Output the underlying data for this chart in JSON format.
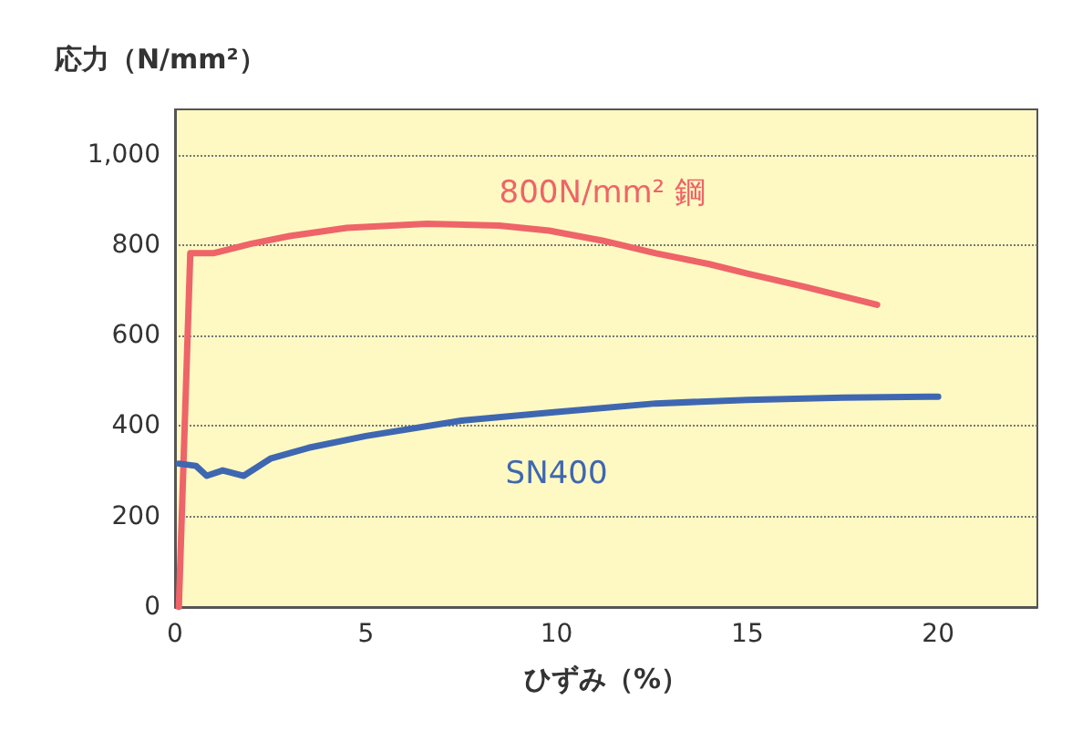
{
  "chart_data": {
    "type": "line",
    "xlabel": "ひずみ（%）",
    "ylabel": "応力（N/mm²）",
    "xlim": [
      0,
      22.6
    ],
    "xticks": [
      0,
      5,
      10,
      15,
      20
    ],
    "ylim": [
      0,
      1100
    ],
    "yticks": [
      0,
      200,
      400,
      600,
      800,
      {
        "value": 1000,
        "label": "1,000"
      }
    ],
    "grid": "y",
    "marker": "none",
    "line_style": "solid",
    "series": [
      {
        "name": "800N/mm² 鋼",
        "color": "#ee6468",
        "x": [
          0.1,
          0.4,
          1.0,
          2.0,
          3.0,
          4.5,
          6.6,
          8.5,
          9.8,
          11.2,
          12.6,
          14.0,
          15.0,
          16.5,
          18.4
        ],
        "values": [
          0,
          782,
          782,
          803,
          820,
          838,
          847,
          843,
          832,
          810,
          782,
          758,
          737,
          708,
          668
        ]
      },
      {
        "name": "SN400",
        "color": "#3f67b1",
        "x": [
          0.1,
          0.55,
          0.83,
          1.25,
          1.8,
          2.5,
          3.5,
          5,
          7.5,
          10,
          12.6,
          15,
          17.5,
          20
        ],
        "values": [
          317,
          312,
          290,
          302,
          290,
          328,
          352,
          378,
          412,
          431,
          450,
          458,
          463,
          465
        ]
      }
    ]
  }
}
